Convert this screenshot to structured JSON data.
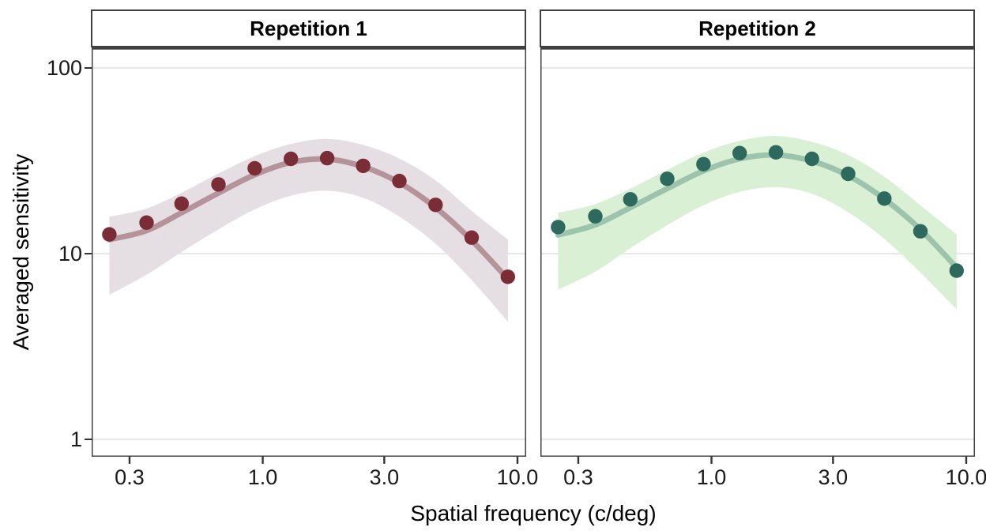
{
  "figure": {
    "x_axis": {
      "title": "Spatial frequency (c/deg)",
      "scale": "log10",
      "domain": [
        0.213,
        10.82
      ],
      "ticks": [
        {
          "label": "0.3",
          "value": 0.3
        },
        {
          "label": "1.0",
          "value": 1.0
        },
        {
          "label": "3.0",
          "value": 3.0
        },
        {
          "label": "10.0",
          "value": 10.0
        }
      ]
    },
    "y_axis": {
      "title": "Averaged sensitivity",
      "scale": "log10",
      "domain": [
        0.806,
        129
      ],
      "ticks": [
        {
          "label": "100",
          "value": 100
        },
        {
          "label": "10",
          "value": 10
        },
        {
          "label": "1",
          "value": 1
        }
      ]
    },
    "grid_color": "#e8e8e8",
    "border_color": "#404040",
    "tick_color": "#333333"
  },
  "chart_data": [
    {
      "type": "scatter",
      "facet_label": "Repetition 1",
      "point_color": "#7B2D37",
      "line_color": "#B5939B",
      "ribbon_color": "#E5DFE3",
      "x": [
        0.25,
        0.35,
        0.48,
        0.67,
        0.93,
        1.29,
        1.79,
        2.48,
        3.44,
        4.77,
        6.61,
        9.17
      ],
      "points": [
        12.7,
        14.7,
        18.6,
        23.6,
        28.8,
        32.4,
        32.7,
        29.7,
        24.6,
        18.3,
        12.2,
        7.5
      ],
      "fit": [
        11.9,
        13.3,
        16.6,
        21.2,
        26.6,
        31.0,
        32.3,
        29.4,
        24.1,
        17.7,
        11.8,
        7.3
      ],
      "ribbon_upper": [
        15.8,
        17.5,
        21.3,
        27.0,
        33.5,
        39.0,
        41.5,
        38.5,
        32.5,
        24.8,
        17.0,
        11.9
      ],
      "ribbon_lower": [
        6.0,
        7.7,
        10.2,
        13.5,
        17.3,
        20.5,
        21.8,
        20.0,
        15.8,
        11.3,
        7.2,
        4.3
      ]
    },
    {
      "type": "scatter",
      "facet_label": "Repetition 2",
      "point_color": "#2D695C",
      "line_color": "#9CC3AC",
      "ribbon_color": "#D9F0D5",
      "x": [
        0.25,
        0.35,
        0.48,
        0.67,
        0.93,
        1.29,
        1.79,
        2.48,
        3.44,
        4.77,
        6.61,
        9.17
      ],
      "points": [
        13.9,
        15.9,
        19.6,
        25.3,
        30.3,
        34.8,
        35.1,
        32.4,
        26.9,
        19.8,
        13.2,
        8.1
      ],
      "fit": [
        12.6,
        14.3,
        17.7,
        22.4,
        27.9,
        32.4,
        34.0,
        31.5,
        26.3,
        19.7,
        13.5,
        8.4
      ],
      "ribbon_upper": [
        16.6,
        18.5,
        22.4,
        28.3,
        35.0,
        40.5,
        43.0,
        40.0,
        34.0,
        26.0,
        18.2,
        12.7
      ],
      "ribbon_lower": [
        6.4,
        8.0,
        10.7,
        14.2,
        18.2,
        21.5,
        22.8,
        21.0,
        16.7,
        12.0,
        7.9,
        5.0
      ]
    }
  ]
}
